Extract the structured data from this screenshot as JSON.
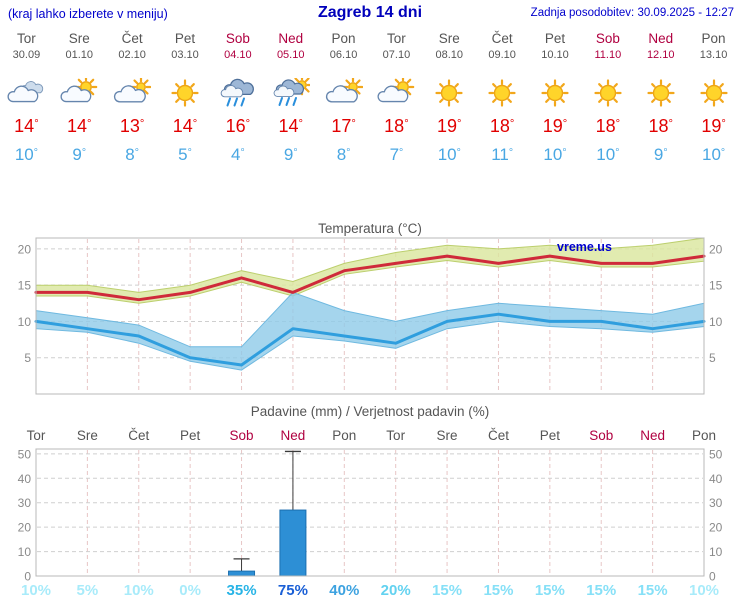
{
  "header": {
    "left_note": "(kraj lahko izberete v meniju)",
    "title": "Zagreb 14 dni",
    "updated": "Zadnja posodobitev: 30.09.2025 - 12:27"
  },
  "watermark": "vreme.us",
  "palette": {
    "link_blue": "#0000cc",
    "title_blue": "#0000bb",
    "weekday_text": "#555555",
    "weekend_text": "#b00040",
    "high_temp": "#e10000",
    "low_temp": "#49a7e3",
    "axis_text": "#8a8a8a",
    "grid": "#cfcfcf",
    "grid_vertical": "#e8c6c6",
    "frame": "#b8b8b8",
    "temp_max_line": "#cf2a3a",
    "temp_min_line": "#2f9ede",
    "temp_max_band_fill": "#d9e69c",
    "temp_max_band_stroke": "#bccf6d",
    "temp_min_band_fill": "#8ecae8",
    "temp_min_band_stroke": "#6fb9e0",
    "bar_fill": "#2d8fd5",
    "bar_stroke": "#1b6fb0",
    "whisker": "#3a3a3a"
  },
  "days": [
    {
      "name": "Tor",
      "date": "30.09",
      "weekend": false,
      "icon": "cloudy",
      "high": "14°",
      "low": "10°"
    },
    {
      "name": "Sre",
      "date": "01.10",
      "weekend": false,
      "icon": "partly-cloudy",
      "high": "14°",
      "low": "9°"
    },
    {
      "name": "Čet",
      "date": "02.10",
      "weekend": false,
      "icon": "mostly-cloudy",
      "high": "13°",
      "low": "8°"
    },
    {
      "name": "Pet",
      "date": "03.10",
      "weekend": false,
      "icon": "sunny",
      "high": "14°",
      "low": "5°"
    },
    {
      "name": "Sob",
      "date": "04.10",
      "weekend": true,
      "icon": "rain",
      "high": "16°",
      "low": "4°"
    },
    {
      "name": "Ned",
      "date": "05.10",
      "weekend": true,
      "icon": "rain-sun",
      "high": "14°",
      "low": "9°"
    },
    {
      "name": "Pon",
      "date": "06.10",
      "weekend": false,
      "icon": "mostly-cloudy",
      "high": "17°",
      "low": "8°"
    },
    {
      "name": "Tor",
      "date": "07.10",
      "weekend": false,
      "icon": "partly-cloudy",
      "high": "18°",
      "low": "7°"
    },
    {
      "name": "Sre",
      "date": "08.10",
      "weekend": false,
      "icon": "sunny",
      "high": "19°",
      "low": "10°"
    },
    {
      "name": "Čet",
      "date": "09.10",
      "weekend": false,
      "icon": "sunny",
      "high": "18°",
      "low": "11°"
    },
    {
      "name": "Pet",
      "date": "10.10",
      "weekend": false,
      "icon": "sunny",
      "high": "19°",
      "low": "10°"
    },
    {
      "name": "Sob",
      "date": "11.10",
      "weekend": true,
      "icon": "sunny",
      "high": "18°",
      "low": "10°"
    },
    {
      "name": "Ned",
      "date": "12.10",
      "weekend": true,
      "icon": "sunny",
      "high": "18°",
      "low": "9°"
    },
    {
      "name": "Pon",
      "date": "13.10",
      "weekend": false,
      "icon": "sunny",
      "high": "19°",
      "low": "10°"
    }
  ],
  "chart_data": [
    {
      "type": "line",
      "title": "Temperatura (°C)",
      "categories": [
        "Tor 30.09",
        "Sre 01.10",
        "Čet 02.10",
        "Pet 03.10",
        "Sob 04.10",
        "Ned 05.10",
        "Pon 06.10",
        "Tor 07.10",
        "Sre 08.10",
        "Čet 09.10",
        "Pet 10.10",
        "Sob 11.10",
        "Ned 12.10",
        "Pon 13.10"
      ],
      "series": [
        {
          "name": "max",
          "values": [
            14,
            14,
            13,
            14,
            16,
            14,
            17,
            18,
            19,
            18,
            19,
            18,
            18,
            19
          ]
        },
        {
          "name": "min",
          "values": [
            10,
            9,
            8,
            5,
            4,
            9,
            8,
            7,
            10,
            11,
            10,
            10,
            9,
            10
          ]
        },
        {
          "name": "max_range_upper",
          "values": [
            15,
            15,
            14,
            15,
            17,
            15.5,
            18,
            19.5,
            20.5,
            20,
            20.5,
            20,
            20.5,
            21.5
          ]
        },
        {
          "name": "max_range_lower",
          "values": [
            13.5,
            13.5,
            12.5,
            13.5,
            15.4,
            13.5,
            16.5,
            17.5,
            18.4,
            17.5,
            18.4,
            17.5,
            17.5,
            18.3
          ]
        },
        {
          "name": "min_range_upper",
          "values": [
            11.5,
            10.5,
            9.5,
            6.5,
            6.5,
            14,
            11.5,
            10,
            11.5,
            12.5,
            12,
            11.5,
            11,
            12.5
          ]
        },
        {
          "name": "min_range_lower",
          "values": [
            9,
            8.5,
            7,
            4.5,
            3.3,
            8,
            7.3,
            6.3,
            9,
            10,
            9.3,
            9,
            8.5,
            9.3
          ]
        }
      ],
      "yticks": [
        5,
        10,
        15,
        20
      ],
      "ylim": [
        0,
        21.5
      ],
      "grid": true,
      "legend": "none"
    },
    {
      "type": "bar",
      "title": "Padavine (mm) / Verjetnost padavin (%)",
      "categories": [
        "Tor",
        "Sre",
        "Čet",
        "Pet",
        "Sob",
        "Ned",
        "Pon",
        "Tor",
        "Sre",
        "Čet",
        "Pet",
        "Sob",
        "Ned",
        "Pon"
      ],
      "values": [
        0,
        0,
        0,
        0,
        2,
        27,
        0,
        0,
        0,
        0,
        0,
        0,
        0,
        0
      ],
      "whisker_max": [
        0,
        0,
        0,
        0,
        7,
        51,
        0,
        0,
        0,
        0,
        0,
        0,
        0,
        0
      ],
      "probabilities": [
        "10%",
        "5%",
        "10%",
        "0%",
        "35%",
        "75%",
        "40%",
        "20%",
        "15%",
        "15%",
        "15%",
        "15%",
        "15%",
        "10%"
      ],
      "probability_colors": [
        "#a8ebfa",
        "#a8ebfa",
        "#a8ebfa",
        "#a8ebfa",
        "#28b4e6",
        "#1a5fd6",
        "#3da2e0",
        "#63d2f0",
        "#86e0f7",
        "#86e0f7",
        "#86e0f7",
        "#86e0f7",
        "#86e0f7",
        "#a8ebfa"
      ],
      "yticks": [
        0,
        10,
        20,
        30,
        40,
        50
      ],
      "ylim": [
        0,
        52
      ],
      "grid": true,
      "legend": "none"
    }
  ]
}
